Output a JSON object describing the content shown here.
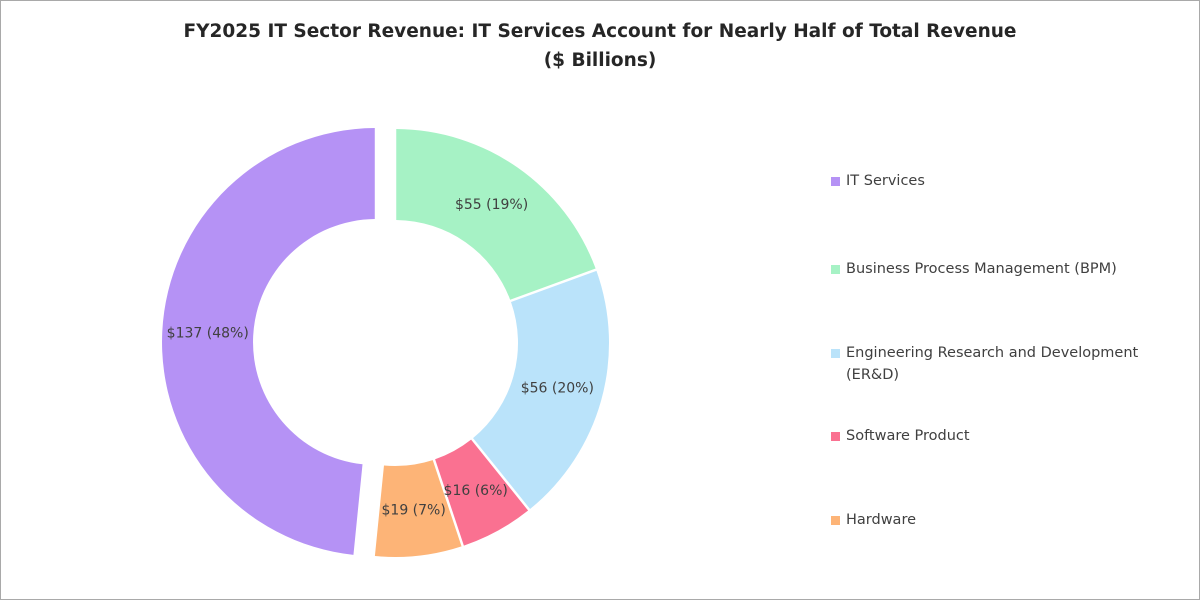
{
  "chart_data": {
    "type": "pie",
    "title": "FY2025 IT Sector Revenue: IT Services Account for Nearly Half of Total Revenue",
    "subtitle": "($ Billions)",
    "donut": true,
    "categories": [
      "IT Services",
      "Business Process Management (BPM)",
      "Engineering Research and Development (ER&D)",
      "Software Product",
      "Hardware"
    ],
    "values": [
      137,
      55,
      56,
      16,
      19
    ],
    "percentages": [
      48,
      19,
      20,
      6,
      7
    ],
    "data_labels": [
      "$137 (48%)",
      "$55 (19%)",
      "$56 (20%)",
      "$16 (6%)",
      "$19 (7%)"
    ],
    "colors": [
      "#b592f5",
      "#a6f2c5",
      "#bae3fa",
      "#fa7191",
      "#fdb477"
    ],
    "exploded": [
      "IT Services"
    ],
    "legend_position": "right"
  },
  "legend": {
    "items": [
      {
        "label": "IT Services",
        "color": "#b592f5"
      },
      {
        "label": "Business Process Management (BPM)",
        "color": "#a6f2c5"
      },
      {
        "label": "Engineering Research and Development (ER&D)",
        "color": "#bae3fa"
      },
      {
        "label": "Software Product",
        "color": "#fa7191"
      },
      {
        "label": "Hardware",
        "color": "#fdb477"
      }
    ]
  }
}
